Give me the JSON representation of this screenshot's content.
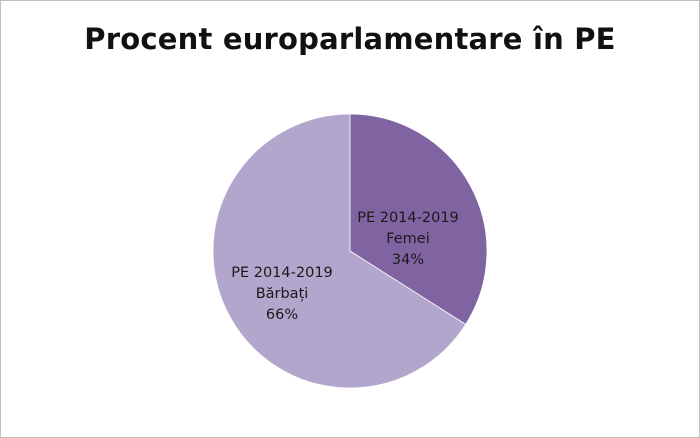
{
  "chart_data": {
    "type": "pie",
    "title": "Procent europarlamentare în PE",
    "slices": [
      {
        "series": "PE 2014-2019",
        "label": "Femei",
        "value": 34,
        "value_label": "34%",
        "color": "#8064a2"
      },
      {
        "series": "PE 2014-2019",
        "label": "Bărbați",
        "value": 66,
        "value_label": "66%",
        "color": "#b3a6cc"
      }
    ],
    "legend": "none",
    "data_labels": "inside"
  }
}
